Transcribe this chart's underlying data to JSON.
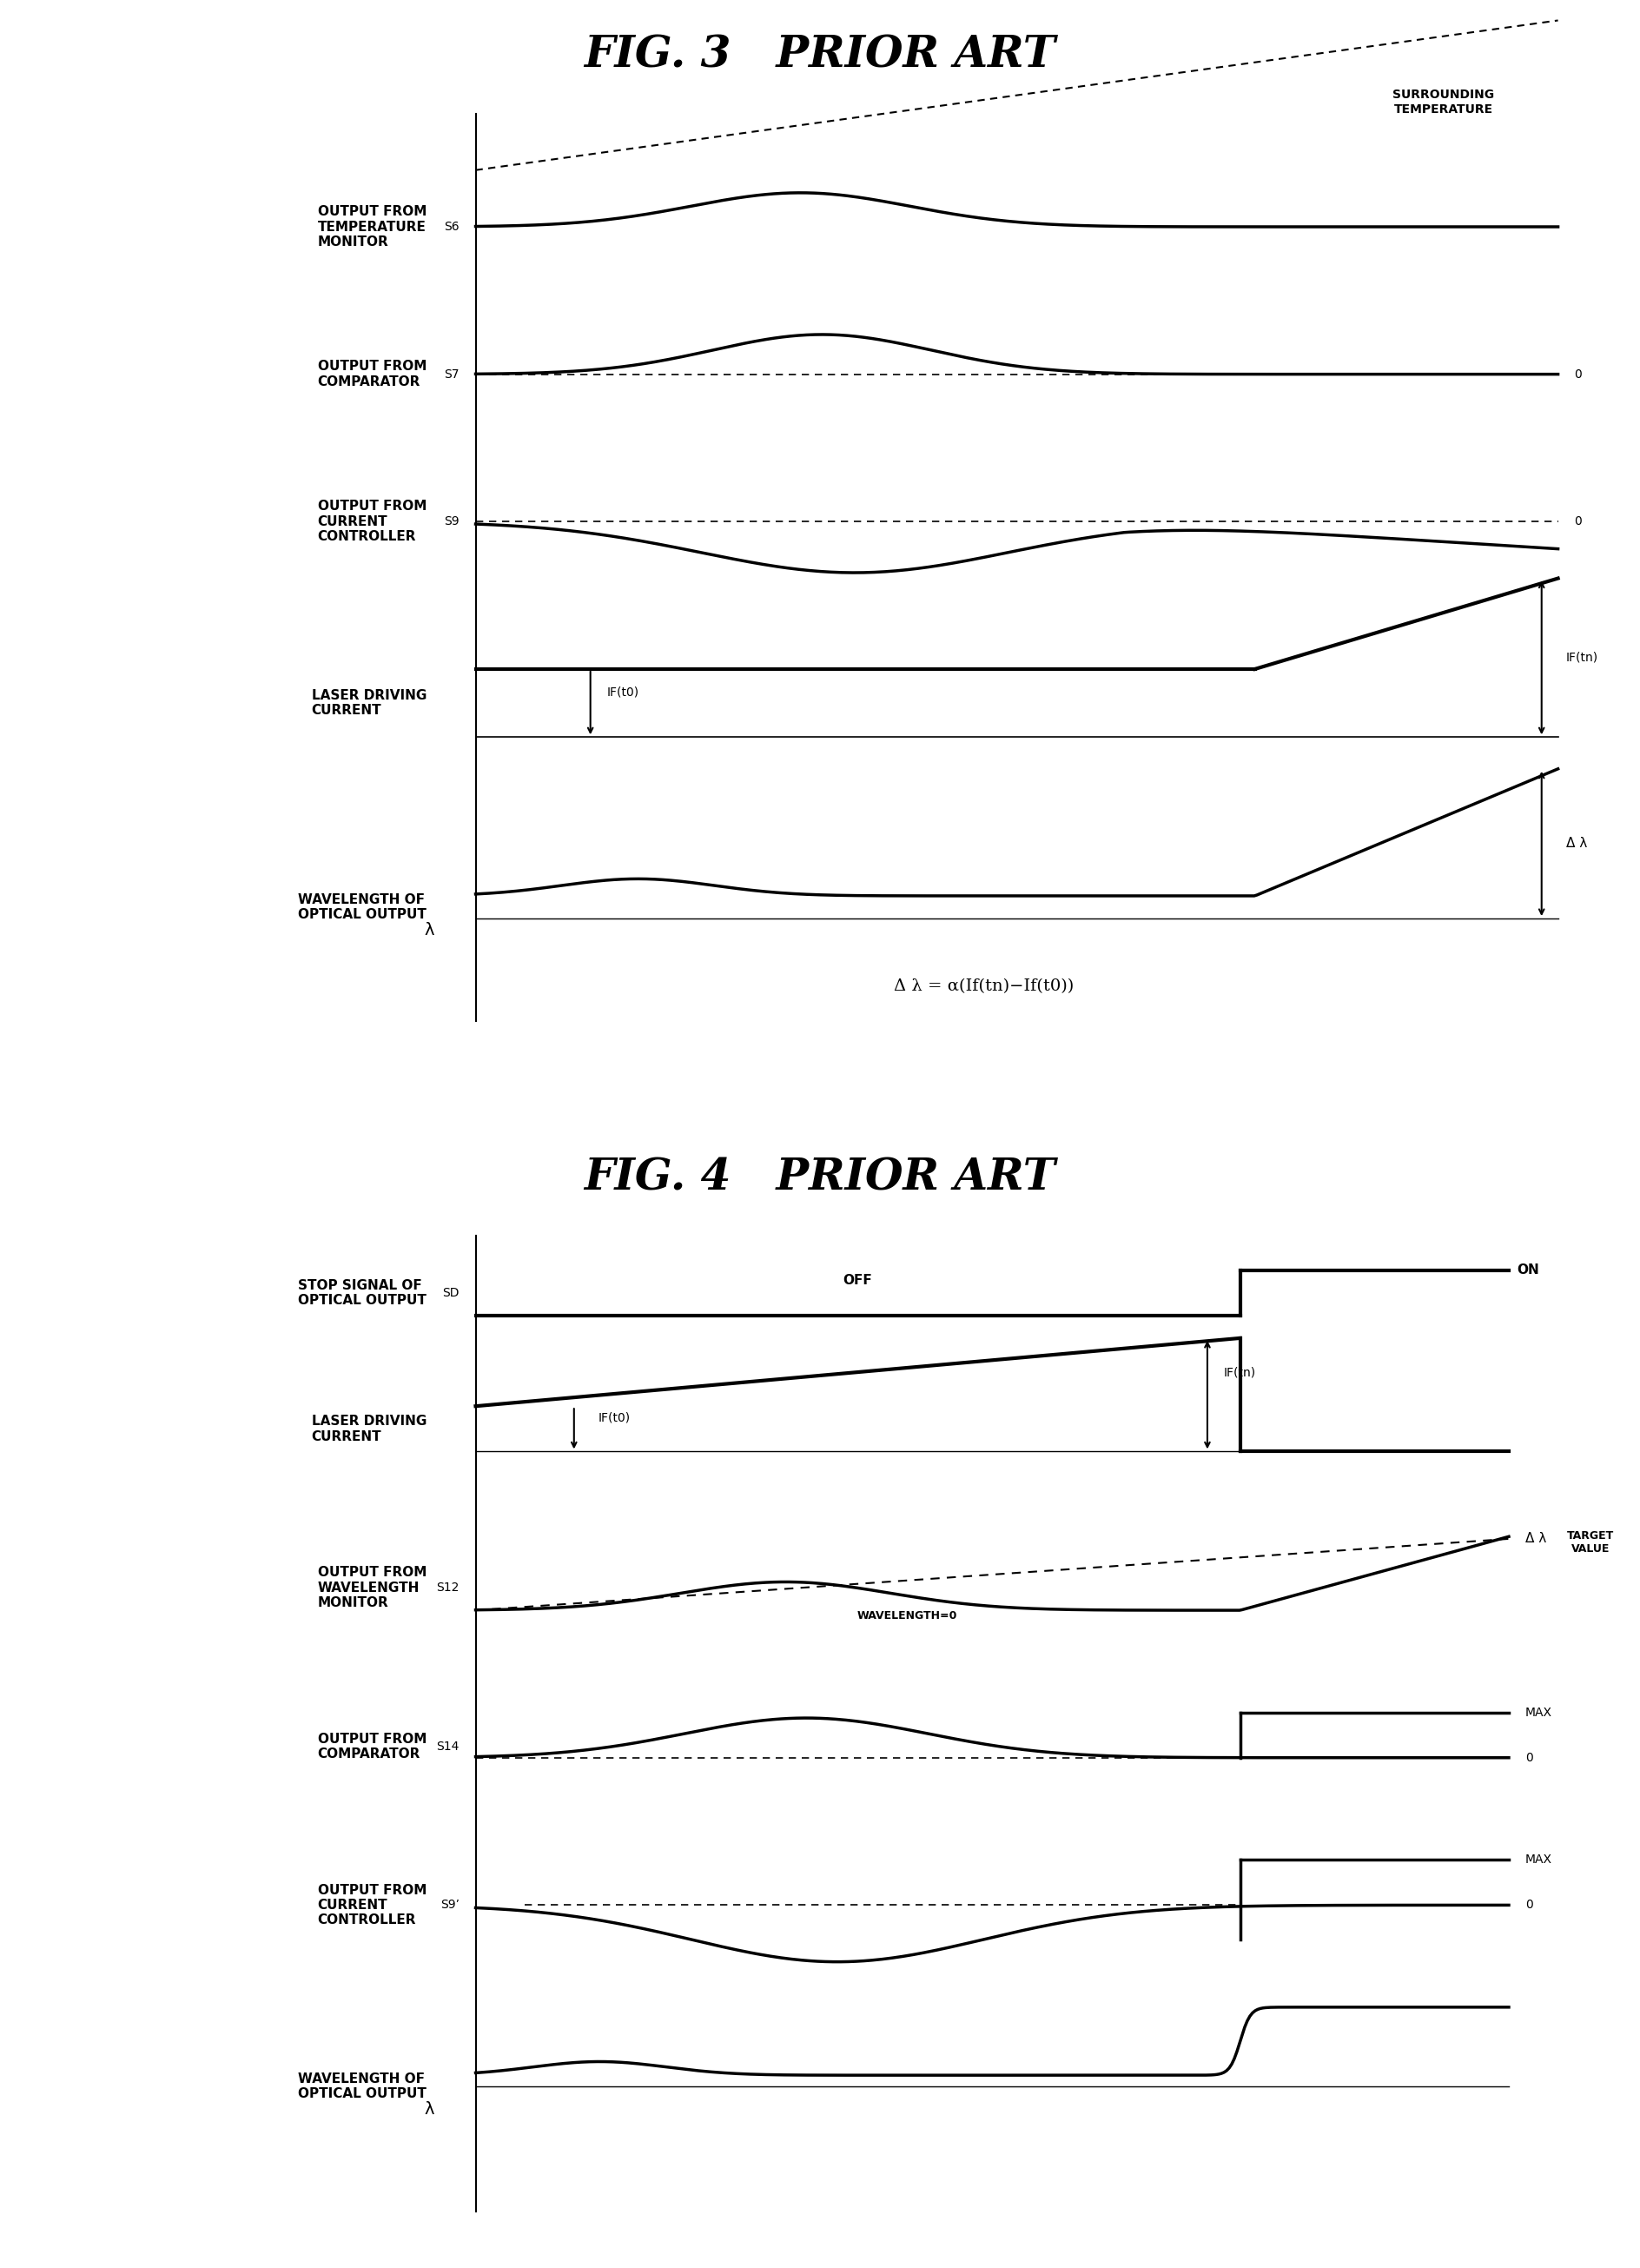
{
  "fig3_title": "FIG. 3   PRIOR ART",
  "fig4_title": "FIG. 4   PRIOR ART",
  "background_color": "#ffffff",
  "fig3_labels_left": [
    "OUTPUT FROM\nTEMPERATURE\nMONITOR",
    "OUTPUT FROM\nCOMPARATOR",
    "OUTPUT FROM\nCURRENT\nCONTROLLER",
    "LASER DRIVING\nCURRENT",
    "WAVELENGTH OF\nOPTICAL OUTPUT"
  ],
  "fig4_labels_left": [
    "STOP SIGNAL OF\nOPTICAL OUTPUT",
    "LASER DRIVING\nCURRENT",
    "OUTPUT FROM\nWAVELENGTH\nMONITOR",
    "OUTPUT FROM\nCOMPARATOR",
    "OUTPUT FROM\nCURRENT\nCONTROLLER",
    "WAVELENGTH OF\nOPTICAL OUTPUT"
  ],
  "title_fontsize": 36,
  "label_fontsize": 12,
  "annotation_fontsize": 12
}
